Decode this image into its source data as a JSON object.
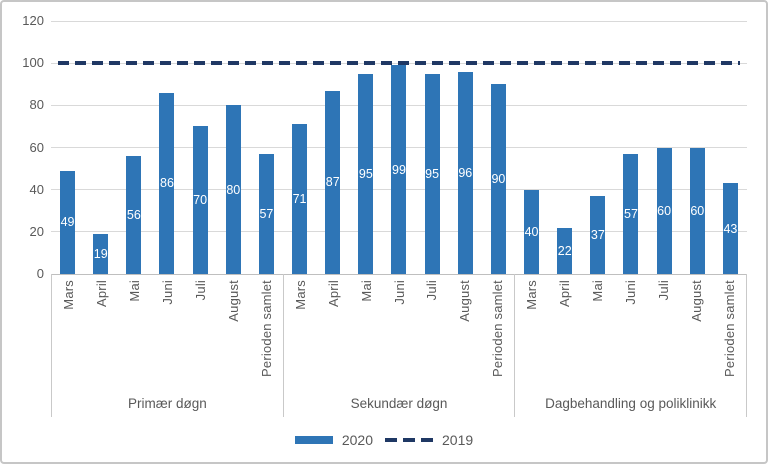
{
  "chart_data": {
    "type": "bar",
    "title": "",
    "xlabel": "",
    "ylabel": "",
    "categories": [
      "Mars",
      "April",
      "Mai",
      "Juni",
      "Juli",
      "August",
      "Perioden samlet"
    ],
    "groups": [
      {
        "label": "Primær døgn",
        "values": [
          49,
          19,
          56,
          86,
          70,
          80,
          57
        ]
      },
      {
        "label": "Sekundær døgn",
        "values": [
          71,
          87,
          95,
          99,
          95,
          96,
          90
        ]
      },
      {
        "label": "Dagbehandling og poliklinikk",
        "values": [
          40,
          22,
          37,
          57,
          60,
          60,
          43
        ]
      }
    ],
    "series": [
      {
        "name": "2020",
        "type": "bar",
        "color": "#2e75b6"
      },
      {
        "name": "2019",
        "type": "dashed-line",
        "color": "#1f3864",
        "value": 100
      }
    ],
    "ylim": [
      0,
      120
    ],
    "yticks": [
      0,
      20,
      40,
      60,
      80,
      100,
      120
    ],
    "grid": true,
    "legend_position": "bottom",
    "colors": {
      "bar": "#2e75b6",
      "target_line": "#1f3864",
      "gridline": "#d9d9d9",
      "axis_line": "#bfbfbf",
      "text": "#595959",
      "data_label": "#ffffff"
    }
  }
}
